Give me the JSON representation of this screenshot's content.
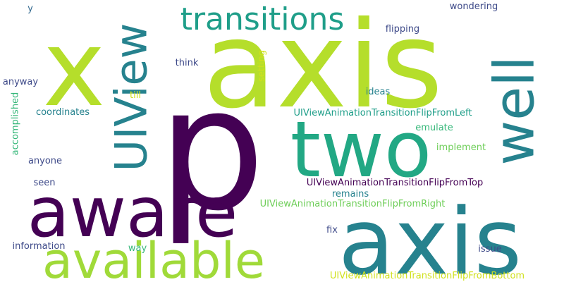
{
  "words": [
    {
      "text": "x",
      "color": "#b5de2b"
    },
    {
      "text": "axis",
      "color": "#b5de2b"
    },
    {
      "text": "transitions",
      "color": "#1f9e89"
    },
    {
      "text": "UIView",
      "color": "#26828e"
    },
    {
      "text": "well",
      "color": "#26828e"
    },
    {
      "text": "p",
      "color": "#440154"
    },
    {
      "text": "two",
      "color": "#22a884"
    },
    {
      "text": "aware",
      "color": "#440154"
    },
    {
      "text": "axis",
      "color": "#26828e"
    },
    {
      "text": "available",
      "color": "#a0da39"
    },
    {
      "text": "y",
      "color": "#31688e"
    },
    {
      "text": "wondering",
      "color": "#3e4a89"
    },
    {
      "text": "flipping",
      "color": "#3e4a89"
    },
    {
      "text": "setting",
      "color": "#d0e11c"
    },
    {
      "text": "think",
      "color": "#3e4a89"
    },
    {
      "text": "anyway",
      "color": "#3e4a89"
    },
    {
      "text": "till",
      "color": "#d0e11c"
    },
    {
      "text": "ideas",
      "color": "#26828e"
    },
    {
      "text": "coordinates",
      "color": "#26828e"
    },
    {
      "text": "UIViewAnimationTransitionFlipFromLeft",
      "color": "#1f9e89"
    },
    {
      "text": "emulate",
      "color": "#35b779"
    },
    {
      "text": "accomplished",
      "color": "#35b779"
    },
    {
      "text": "implement",
      "color": "#6ece58"
    },
    {
      "text": "anyone",
      "color": "#3e4a89"
    },
    {
      "text": "UIViewAnimationTransitionFlipFromTop",
      "color": "#440154"
    },
    {
      "text": "seen",
      "color": "#3e4a89"
    },
    {
      "text": "remains",
      "color": "#26828e"
    },
    {
      "text": "UIViewAnimationTransitionFlipFromRight",
      "color": "#6ece58"
    },
    {
      "text": "fix",
      "color": "#3e4a89"
    },
    {
      "text": "information",
      "color": "#3e4a89"
    },
    {
      "text": "way",
      "color": "#35b779"
    },
    {
      "text": "issue",
      "color": "#3e4a89"
    },
    {
      "text": "UIViewAnimationTransitionFlipFromBottom",
      "color": "#d0e11c"
    }
  ]
}
